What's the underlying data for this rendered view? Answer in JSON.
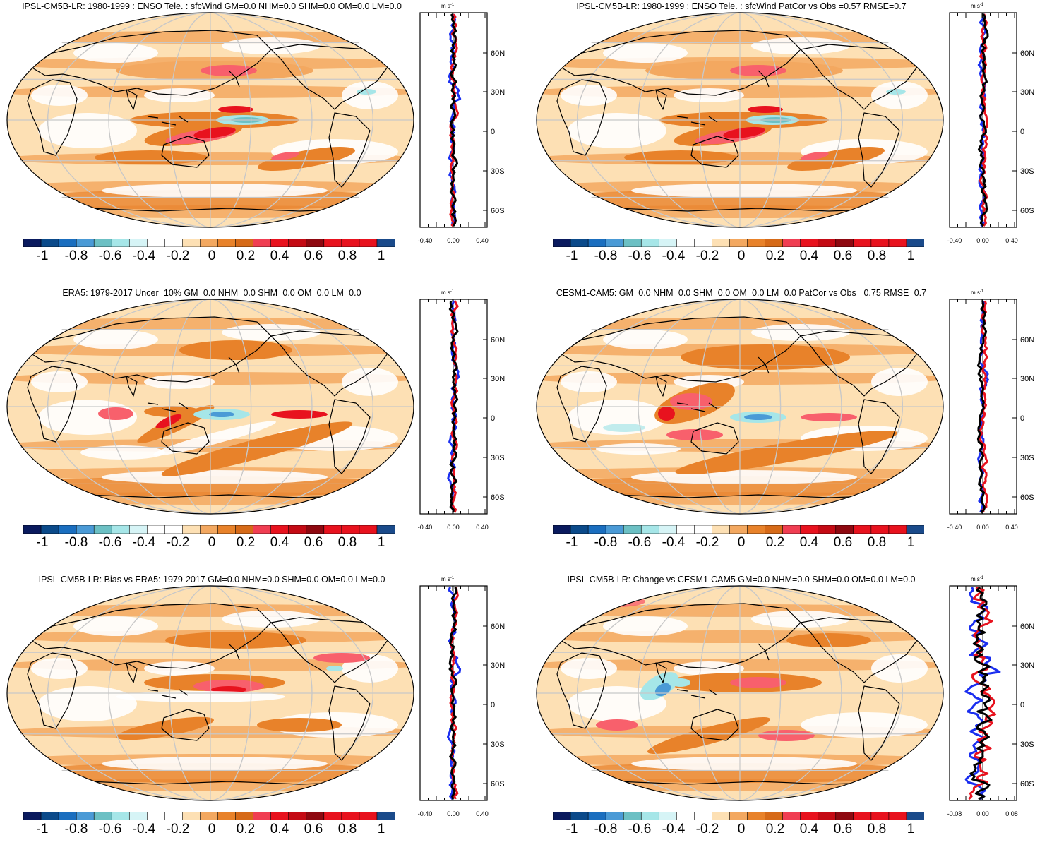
{
  "panels": [
    {
      "id": "p1",
      "title": "IPSL-CM5B-LR: 1980-1999 : ENSO Tele. : sfcWind GM=0.0 NHM=0.0 SHM=0.0 OM=0.0 LM=0.0",
      "variant": "model"
    },
    {
      "id": "p2",
      "title": "IPSL-CM5B-LR: 1980-1999 : ENSO Tele. : sfcWind PatCor vs Obs =0.57 RMSE=0.7",
      "variant": "model"
    },
    {
      "id": "p3",
      "title": "ERA5: 1979-2017 Uncer=10% GM=0.0 NHM=0.0 SHM=0.0 OM=0.0 LM=0.0",
      "variant": "obs"
    },
    {
      "id": "p4",
      "title": "CESM1-CAM5: GM=0.0 NHM=0.0 SHM=0.0 OM=0.0 LM=0.0 PatCor vs Obs =0.75 RMSE=0.7",
      "variant": "cesm"
    },
    {
      "id": "p5",
      "title": "IPSL-CM5B-LR: Bias vs ERA5: 1979-2017 GM=0.0 NHM=0.0 SHM=0.0 OM=0.0 LM=0.0",
      "variant": "bias"
    },
    {
      "id": "p6",
      "title": "IPSL-CM5B-LR: Change vs CESM1-CAM5 GM=0.0 NHM=0.0 SHM=0.0 OM=0.0 LM=0.0",
      "variant": "change"
    }
  ],
  "colorbar": {
    "colors": [
      "#0a1a5e",
      "#0b4a8a",
      "#1a6ebf",
      "#4a9ad6",
      "#6cc0c4",
      "#a6e6e8",
      "#d6f4f6",
      "#ffffff",
      "#ffffff",
      "#fde0b4",
      "#f3a860",
      "#e8822a",
      "#d66a18",
      "#f03e52",
      "#e8121e",
      "#c40a14",
      "#8e0810",
      "#e8121e",
      "#e8121e",
      "#e8121e",
      "#1a4a8a"
    ],
    "labels": [
      "-1",
      "-0.8",
      "-0.6",
      "-0.4",
      "-0.2",
      "0",
      "0.2",
      "0.4",
      "0.6",
      "0.8",
      "1"
    ]
  },
  "profile": {
    "unit": "m s",
    "unit_sup": "-1",
    "lat_labels": [
      "60N",
      "30N",
      "0",
      "30S",
      "60S"
    ],
    "x_labels_default": [
      "-0.40",
      "0.00",
      "0.40"
    ],
    "x_labels_change": [
      "-0.08",
      "0.00",
      "0.08"
    ],
    "series_colors": {
      "model": "#1a2ef0",
      "obs": "#e8121e",
      "diff": "#000000"
    }
  }
}
